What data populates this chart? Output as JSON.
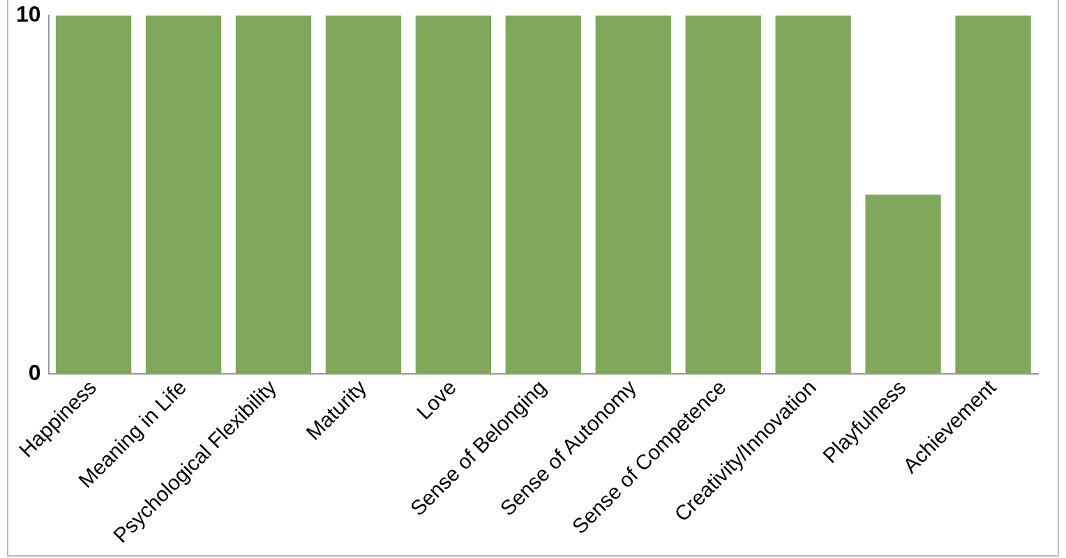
{
  "chart_data": {
    "type": "bar",
    "categories": [
      "Happiness",
      "Meaning in Life",
      "Psychological Flexibility",
      "Maturity",
      "Love",
      "Sense of Belonging",
      "Sense of Autonomy",
      "Sense of Competence",
      "Creativity/Innovation",
      "Playfulness",
      "Achievement"
    ],
    "values": [
      10,
      10,
      10,
      10,
      10,
      10,
      10,
      10,
      10,
      5,
      10
    ],
    "color": "#7fa85a",
    "ylim": [
      0,
      10
    ],
    "yticks": [
      0,
      10
    ],
    "grid": false,
    "legend": false
  }
}
